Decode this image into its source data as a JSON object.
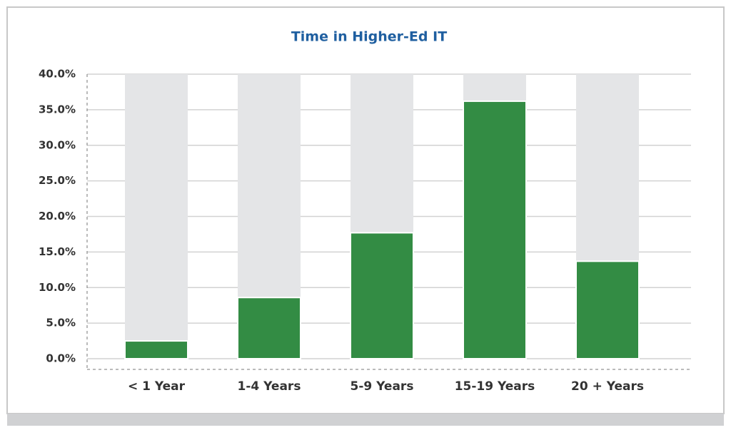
{
  "chart_data": {
    "type": "bar",
    "title": "Time in Higher-Ed IT",
    "categories": [
      "< 1 Year",
      "1-4 Years",
      "5-9 Years",
      "15-19 Years",
      "20 + Years"
    ],
    "values": [
      2.5,
      8.6,
      17.7,
      36.2,
      13.7
    ],
    "color": "#338c44",
    "background_color": "#e4e5e7",
    "ylim": [
      0,
      40
    ],
    "yticks": [
      {
        "value": 0,
        "label": "0.0%"
      },
      {
        "value": 5,
        "label": "5.0%"
      },
      {
        "value": 10,
        "label": "10.0%"
      },
      {
        "value": 15,
        "label": "15.0%"
      },
      {
        "value": 20,
        "label": "20.0%"
      },
      {
        "value": 25,
        "label": "25.0%"
      },
      {
        "value": 30,
        "label": "30.0%"
      },
      {
        "value": 35,
        "label": "35.0%"
      },
      {
        "value": 40,
        "label": "40.0%"
      }
    ],
    "grid": true
  }
}
